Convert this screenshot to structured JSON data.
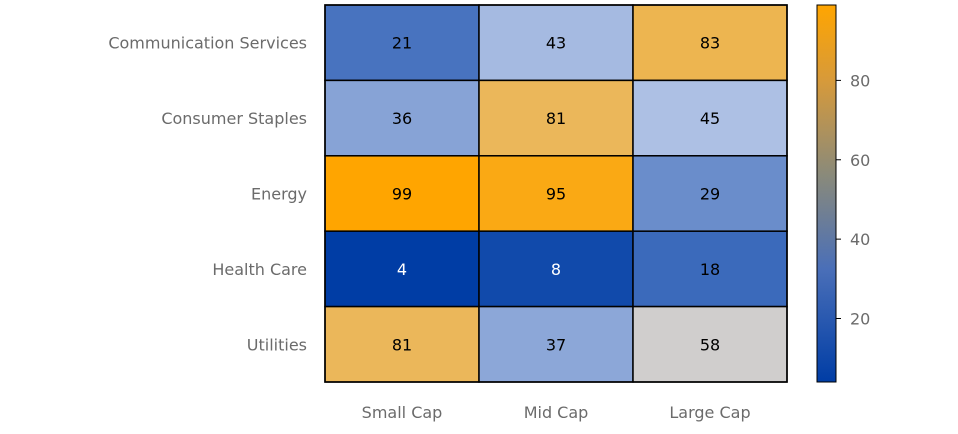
{
  "chart_data": {
    "type": "heatmap",
    "title": "",
    "xlabel": "",
    "ylabel": "",
    "rows": [
      "Communication Services",
      "Consumer Staples",
      "Energy",
      "Health Care",
      "Utilities"
    ],
    "columns": [
      "Small Cap",
      "Mid Cap",
      "Large Cap"
    ],
    "values": [
      [
        21,
        43,
        83
      ],
      [
        36,
        81,
        45
      ],
      [
        99,
        95,
        29
      ],
      [
        4,
        8,
        18
      ],
      [
        81,
        37,
        58
      ]
    ],
    "colorbar": {
      "min": 4,
      "max": 99,
      "ticks": [
        20,
        40,
        60,
        80
      ],
      "tick_labels": [
        "20",
        "40",
        "60",
        "80"
      ],
      "colors": [
        "#003da5",
        "#c9d5ee",
        "#ffa500"
      ],
      "placement": "right"
    },
    "grid": false
  }
}
